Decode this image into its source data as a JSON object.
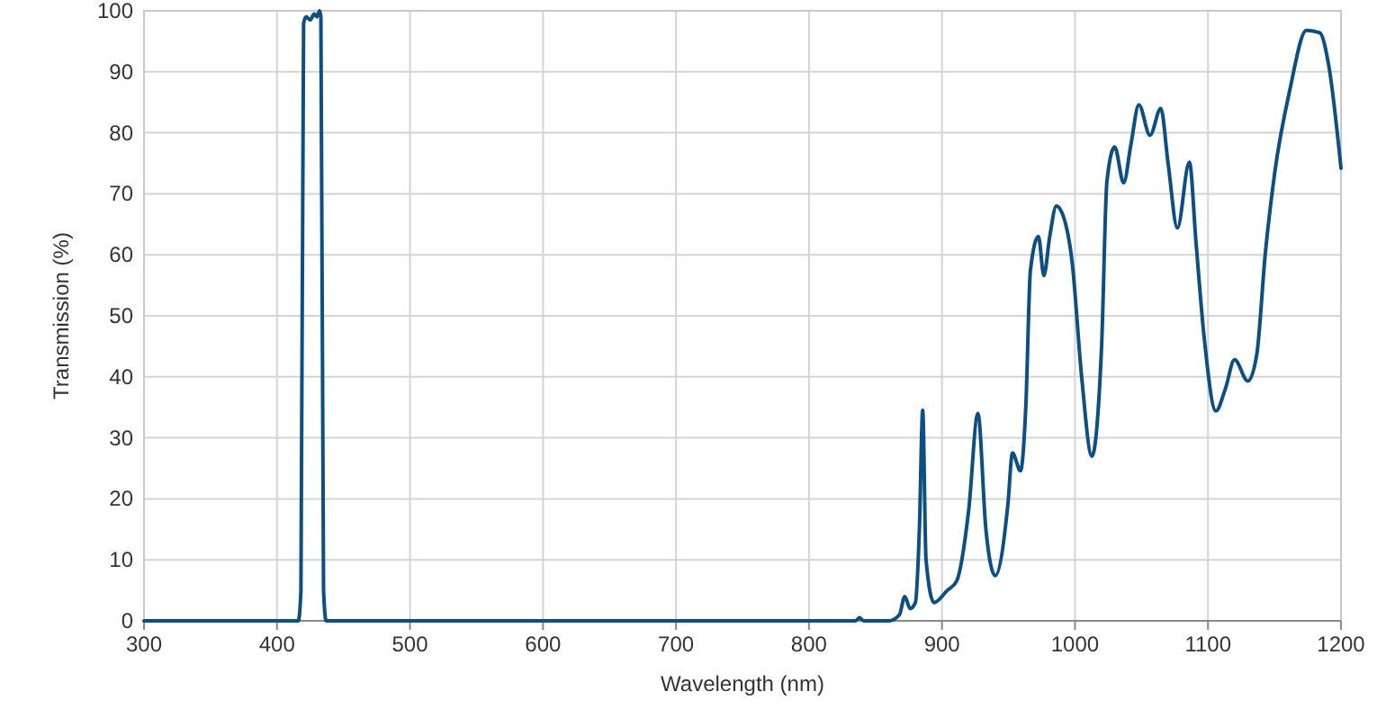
{
  "chart_data": {
    "type": "line",
    "xlabel": "Wavelength (nm)",
    "ylabel": "Transmission (%)",
    "xlim": [
      300,
      1200
    ],
    "ylim": [
      0,
      100
    ],
    "xticks": [
      300,
      400,
      500,
      600,
      700,
      800,
      900,
      1000,
      1100,
      1200
    ],
    "yticks": [
      0,
      10,
      20,
      30,
      40,
      50,
      60,
      70,
      80,
      90,
      100
    ],
    "grid": true,
    "marker": "none",
    "line_style": "solid",
    "series": [
      {
        "color": "#0d4f80",
        "x": [
          300,
          416,
          418,
          420,
          422,
          425,
          428,
          430,
          432,
          433,
          435,
          437,
          835,
          838,
          841,
          860,
          868,
          872,
          876,
          880,
          883,
          885.5,
          888,
          894,
          904,
          911,
          920,
          927,
          933,
          940,
          949.5,
          953,
          959,
          963,
          966.5,
          972.5,
          976.6,
          981,
          986,
          990,
          998,
          1005,
          1012.7,
          1020,
          1024,
          1029.8,
          1036.6,
          1042,
          1048,
          1056.4,
          1064.5,
          1070,
          1077,
          1086,
          1091,
          1097,
          1106,
          1113,
          1120,
          1130,
          1136.7,
          1143,
          1150,
          1161.5,
          1174,
          1184,
          1190.8,
          1200
        ],
        "values": [
          0,
          0,
          5,
          98,
          99,
          98.5,
          99.5,
          99,
          100,
          99,
          5,
          0,
          0,
          0.5,
          0,
          0,
          1,
          4,
          2,
          3,
          15,
          34.5,
          10,
          3,
          5,
          6.5,
          18,
          34,
          15,
          7.4,
          19,
          27.5,
          24.6,
          35,
          57.5,
          63,
          56.6,
          63,
          68,
          67,
          58.5,
          40,
          27,
          45,
          72,
          77.7,
          71.8,
          78,
          84.6,
          79.6,
          84,
          75,
          64.4,
          75.2,
          62,
          46.7,
          34.4,
          38,
          42.8,
          39.3,
          43.7,
          60,
          73.2,
          87,
          96.8,
          96.4,
          91,
          74.2
        ]
      }
    ]
  }
}
